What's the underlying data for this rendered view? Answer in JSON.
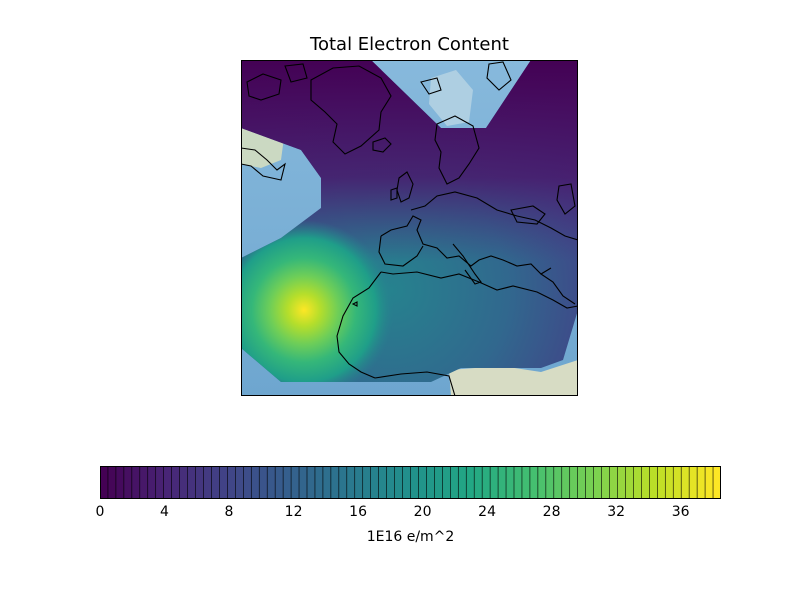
{
  "title": "Total Electron Content",
  "colorbar": {
    "label": "1E16 e/m^2",
    "min": 0,
    "max": 38.5,
    "ticks": [
      "0",
      "4",
      "8",
      "12",
      "16",
      "20",
      "24",
      "28",
      "32",
      "36"
    ],
    "tick_values": [
      0,
      4,
      8,
      12,
      16,
      20,
      24,
      28,
      32,
      36
    ],
    "levels": 78,
    "colormap": "viridis"
  },
  "chart_data": {
    "type": "heatmap",
    "title": "Total Electron Content",
    "colorbar_label": "1E16 e/m^2",
    "colorbar_range": [
      0,
      38.5
    ],
    "colormap": "viridis",
    "peak_value_approx": 38,
    "peak_location": "west of North Africa (Atlantic)",
    "low_value_region": "Greenland / Arctic",
    "background": "shaded-relief land and ocean basemap with black coastlines"
  },
  "colors": {
    "ocean": "#7fb2d6",
    "land": "#cddcc4",
    "coastline": "#000000"
  }
}
